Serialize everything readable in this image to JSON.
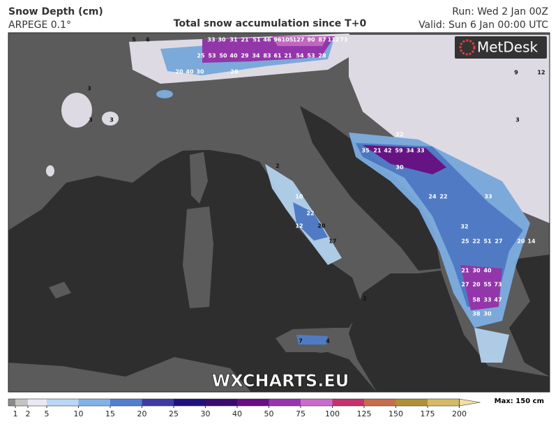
{
  "header": {
    "title": "Snow Depth (cm)",
    "model": "ARPEGE 0.1°",
    "subtitle": "Total snow accumulation since T+0",
    "run": "Run: Wed 2 Jan 00Z",
    "valid": "Valid: Sun 6 Jan 00:00 UTC"
  },
  "logo": "MetDesk",
  "watermark": "WXCHARTS.EU",
  "colorbar": {
    "ticks": [
      1,
      2,
      5,
      10,
      15,
      20,
      25,
      30,
      40,
      50,
      75,
      100,
      125,
      150,
      175,
      200
    ],
    "colors": [
      "#8a8a8a",
      "#c4c4c4",
      "#ece8f2",
      "#b8d8f6",
      "#7fb2e8",
      "#4f7fd0",
      "#3b3ca8",
      "#1f1280",
      "#3c0a70",
      "#680c88",
      "#9a32b2",
      "#cc6acc",
      "#c7306c",
      "#c86c4c",
      "#b09034",
      "#d6ba62",
      "#f2dea4"
    ],
    "max_label": "Max: 150 cm"
  },
  "map_labels": [
    "33",
    "30",
    "31",
    "21",
    "51",
    "46",
    "96",
    "105",
    "127",
    "90",
    "87",
    "112",
    "73",
    "25",
    "53",
    "50",
    "40",
    "29",
    "34",
    "83",
    "61",
    "21",
    "54",
    "53",
    "28",
    "20",
    "40",
    "30",
    "26",
    "35",
    "21",
    "42",
    "59",
    "34",
    "33",
    "30",
    "22",
    "24",
    "22",
    "33",
    "32",
    "25",
    "22",
    "51",
    "27",
    "20",
    "14",
    "21",
    "30",
    "40",
    "27",
    "20",
    "55",
    "73",
    "58",
    "33",
    "47",
    "38",
    "30",
    "10",
    "22",
    "12",
    "20",
    "17",
    "7",
    "4",
    "5",
    "6",
    "3",
    "3",
    "3",
    "2",
    "2",
    "9",
    "12",
    "3"
  ]
}
